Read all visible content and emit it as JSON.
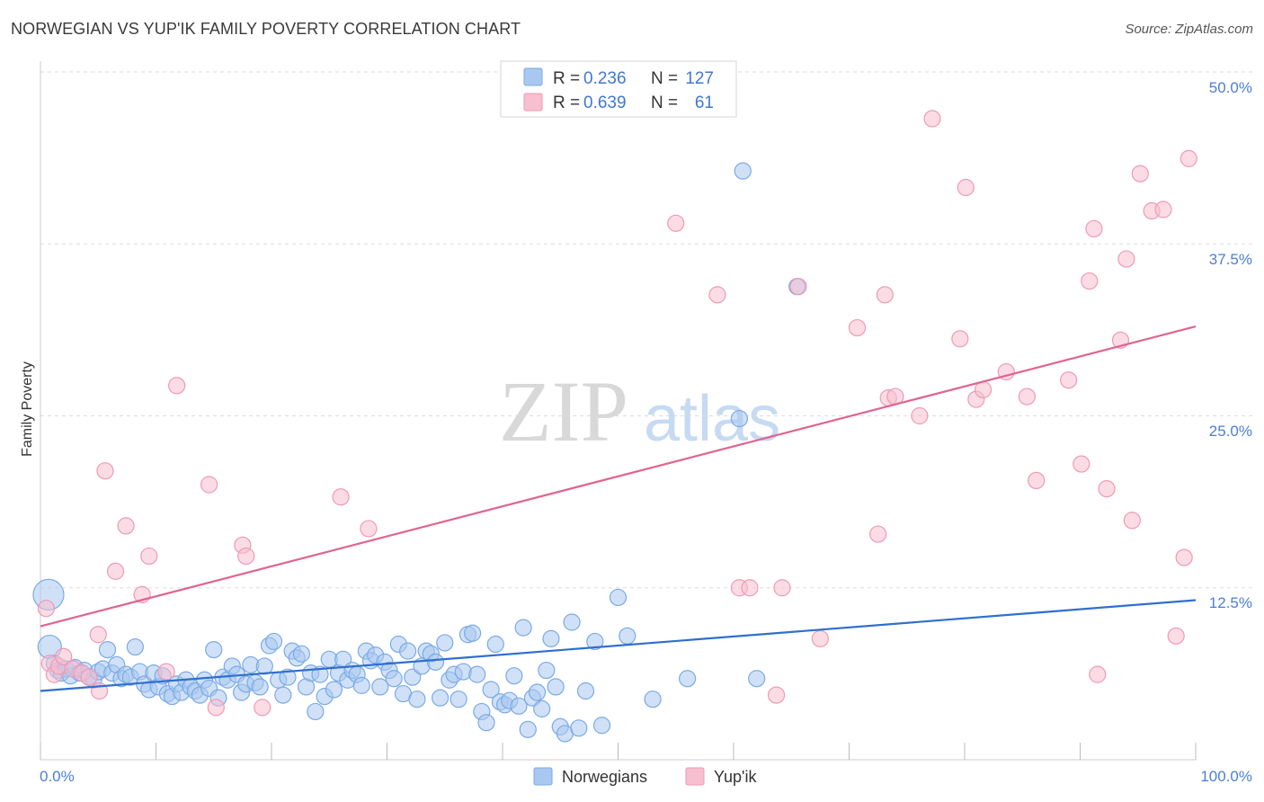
{
  "title": "NORWEGIAN VS YUP'IK FAMILY POVERTY CORRELATION CHART",
  "source": "Source: ZipAtlas.com",
  "watermark": {
    "zip": "ZIP",
    "atlas": "atlas"
  },
  "colors": {
    "blue_fill": "#a9c8f0",
    "blue_stroke": "#7aaae6",
    "blue_line": "#2e6fce",
    "pink_fill": "#f7bfd0",
    "pink_stroke": "#ee9ab5",
    "pink_line": "#e0648f",
    "tick_text": "#4a7fd4"
  },
  "legend": {
    "rows": [
      {
        "r_label": "R =",
        "r_value": "0.236",
        "n_label": "N =",
        "n_value": "127"
      },
      {
        "r_label": "R =",
        "r_value": "0.639",
        "n_label": "N =",
        "n_value": "61"
      }
    ]
  },
  "chart_data": {
    "type": "scatter",
    "title": "NORWEGIAN VS YUP'IK FAMILY POVERTY CORRELATION CHART",
    "xlabel": "",
    "ylabel": "Family Poverty",
    "xlim": [
      0,
      100
    ],
    "ylim": [
      0,
      50
    ],
    "x_tick_labels": [
      "0.0%",
      "100.0%"
    ],
    "y_tick_labels": [
      "12.5%",
      "25.0%",
      "37.5%",
      "50.0%"
    ],
    "y_tick_values": [
      12.5,
      25.0,
      37.5,
      50.0
    ],
    "grid": true,
    "legend_position": "top-center",
    "series": [
      {
        "name": "Norwegians",
        "color": "#a9c8f0",
        "trend": {
          "x": [
            0,
            100
          ],
          "y": [
            5.0,
            11.6
          ]
        },
        "points": [
          [
            0.7,
            12.0
          ],
          [
            0.8,
            8.2
          ],
          [
            1.2,
            7.0
          ],
          [
            1.5,
            6.5
          ],
          [
            1.8,
            6.3
          ],
          [
            2.2,
            6.6
          ],
          [
            2.6,
            6.1
          ],
          [
            3.0,
            6.7
          ],
          [
            3.4,
            6.3
          ],
          [
            3.8,
            6.5
          ],
          [
            4.2,
            6.0
          ],
          [
            4.6,
            5.8
          ],
          [
            5.0,
            6.4
          ],
          [
            5.4,
            6.6
          ],
          [
            5.8,
            8.0
          ],
          [
            6.2,
            6.3
          ],
          [
            6.6,
            6.9
          ],
          [
            7.0,
            5.9
          ],
          [
            7.4,
            6.2
          ],
          [
            7.8,
            6.0
          ],
          [
            8.2,
            8.2
          ],
          [
            8.6,
            6.4
          ],
          [
            9.0,
            5.5
          ],
          [
            9.4,
            5.1
          ],
          [
            9.8,
            6.3
          ],
          [
            10.2,
            5.3
          ],
          [
            10.6,
            6.1
          ],
          [
            11.0,
            4.8
          ],
          [
            11.4,
            4.6
          ],
          [
            11.8,
            5.5
          ],
          [
            12.2,
            4.9
          ],
          [
            12.6,
            5.8
          ],
          [
            13.0,
            5.3
          ],
          [
            13.4,
            5.0
          ],
          [
            13.8,
            4.7
          ],
          [
            14.2,
            5.8
          ],
          [
            14.6,
            5.2
          ],
          [
            15.0,
            8.0
          ],
          [
            15.4,
            4.5
          ],
          [
            15.8,
            6.0
          ],
          [
            16.2,
            5.8
          ],
          [
            16.6,
            6.8
          ],
          [
            17.0,
            6.2
          ],
          [
            17.4,
            4.9
          ],
          [
            17.8,
            5.5
          ],
          [
            18.2,
            6.9
          ],
          [
            18.6,
            5.6
          ],
          [
            19.0,
            5.3
          ],
          [
            19.4,
            6.8
          ],
          [
            19.8,
            8.3
          ],
          [
            20.2,
            8.6
          ],
          [
            20.6,
            5.8
          ],
          [
            21.0,
            4.7
          ],
          [
            21.4,
            6.0
          ],
          [
            21.8,
            7.9
          ],
          [
            22.2,
            7.4
          ],
          [
            22.6,
            7.7
          ],
          [
            23.0,
            5.3
          ],
          [
            23.4,
            6.3
          ],
          [
            23.8,
            3.5
          ],
          [
            24.2,
            6.2
          ],
          [
            24.6,
            4.6
          ],
          [
            25.0,
            7.3
          ],
          [
            25.4,
            5.1
          ],
          [
            25.8,
            6.3
          ],
          [
            26.2,
            7.3
          ],
          [
            26.6,
            5.8
          ],
          [
            27.0,
            6.5
          ],
          [
            27.4,
            6.2
          ],
          [
            27.8,
            5.4
          ],
          [
            28.2,
            7.9
          ],
          [
            28.6,
            7.2
          ],
          [
            29.0,
            7.6
          ],
          [
            29.4,
            5.3
          ],
          [
            29.8,
            7.1
          ],
          [
            30.2,
            6.5
          ],
          [
            30.6,
            5.9
          ],
          [
            31.0,
            8.4
          ],
          [
            31.4,
            4.8
          ],
          [
            31.8,
            7.9
          ],
          [
            32.2,
            6.0
          ],
          [
            32.6,
            4.4
          ],
          [
            33.0,
            6.8
          ],
          [
            33.4,
            7.9
          ],
          [
            33.8,
            7.7
          ],
          [
            34.2,
            7.1
          ],
          [
            34.6,
            4.5
          ],
          [
            35.0,
            8.5
          ],
          [
            35.4,
            5.8
          ],
          [
            35.8,
            6.2
          ],
          [
            36.2,
            4.4
          ],
          [
            36.6,
            6.4
          ],
          [
            37.0,
            9.1
          ],
          [
            37.4,
            9.2
          ],
          [
            37.8,
            6.2
          ],
          [
            38.2,
            3.5
          ],
          [
            38.6,
            2.7
          ],
          [
            39.0,
            5.1
          ],
          [
            39.4,
            8.4
          ],
          [
            39.8,
            4.2
          ],
          [
            40.2,
            4.0
          ],
          [
            40.6,
            4.3
          ],
          [
            41.0,
            6.1
          ],
          [
            41.4,
            3.9
          ],
          [
            41.8,
            9.6
          ],
          [
            42.2,
            2.2
          ],
          [
            42.6,
            4.5
          ],
          [
            43.0,
            4.9
          ],
          [
            43.4,
            3.7
          ],
          [
            43.8,
            6.5
          ],
          [
            44.2,
            8.8
          ],
          [
            44.6,
            5.3
          ],
          [
            45.0,
            2.4
          ],
          [
            45.4,
            1.9
          ],
          [
            46.0,
            10.0
          ],
          [
            46.6,
            2.3
          ],
          [
            47.2,
            5.0
          ],
          [
            48.0,
            8.6
          ],
          [
            48.6,
            2.5
          ],
          [
            50.0,
            11.8
          ],
          [
            50.8,
            9.0
          ],
          [
            53.0,
            4.4
          ],
          [
            56.0,
            5.9
          ],
          [
            60.5,
            24.8
          ],
          [
            62.0,
            5.9
          ],
          [
            65.5,
            34.4
          ],
          [
            60.8,
            42.8
          ]
        ]
      },
      {
        "name": "Yup'ik",
        "color": "#f7bfd0",
        "trend": {
          "x": [
            0,
            100
          ],
          "y": [
            9.7,
            31.5
          ]
        },
        "points": [
          [
            0.5,
            11.0
          ],
          [
            0.8,
            7.0
          ],
          [
            1.2,
            6.2
          ],
          [
            1.6,
            6.8
          ],
          [
            2.0,
            7.5
          ],
          [
            2.8,
            6.6
          ],
          [
            3.6,
            6.3
          ],
          [
            4.2,
            6.0
          ],
          [
            5.0,
            9.1
          ],
          [
            5.1,
            5.0
          ],
          [
            5.6,
            21.0
          ],
          [
            6.5,
            13.7
          ],
          [
            7.4,
            17.0
          ],
          [
            8.8,
            12.0
          ],
          [
            9.4,
            14.8
          ],
          [
            10.9,
            6.4
          ],
          [
            11.8,
            27.2
          ],
          [
            14.6,
            20.0
          ],
          [
            15.2,
            3.8
          ],
          [
            17.5,
            15.6
          ],
          [
            17.8,
            14.8
          ],
          [
            19.2,
            3.8
          ],
          [
            26.0,
            19.1
          ],
          [
            28.4,
            16.8
          ],
          [
            55.0,
            39.0
          ],
          [
            58.6,
            33.8
          ],
          [
            60.5,
            12.5
          ],
          [
            61.4,
            12.5
          ],
          [
            63.7,
            4.7
          ],
          [
            64.2,
            12.5
          ],
          [
            65.6,
            34.4
          ],
          [
            67.5,
            8.8
          ],
          [
            70.7,
            31.4
          ],
          [
            72.5,
            16.4
          ],
          [
            73.1,
            33.8
          ],
          [
            73.4,
            26.3
          ],
          [
            74.0,
            26.4
          ],
          [
            76.1,
            25.0
          ],
          [
            77.2,
            46.6
          ],
          [
            79.6,
            30.6
          ],
          [
            80.1,
            41.6
          ],
          [
            81.0,
            26.2
          ],
          [
            81.6,
            26.9
          ],
          [
            83.6,
            28.2
          ],
          [
            85.4,
            26.4
          ],
          [
            86.2,
            20.3
          ],
          [
            89.0,
            27.6
          ],
          [
            90.1,
            21.5
          ],
          [
            90.8,
            34.8
          ],
          [
            91.2,
            38.6
          ],
          [
            92.3,
            19.7
          ],
          [
            93.5,
            30.5
          ],
          [
            94.0,
            36.4
          ],
          [
            94.5,
            17.4
          ],
          [
            95.2,
            42.6
          ],
          [
            96.2,
            39.9
          ],
          [
            97.2,
            40.0
          ],
          [
            98.3,
            9.0
          ],
          [
            99.0,
            14.7
          ],
          [
            99.4,
            43.7
          ],
          [
            91.5,
            6.2
          ]
        ]
      }
    ]
  }
}
